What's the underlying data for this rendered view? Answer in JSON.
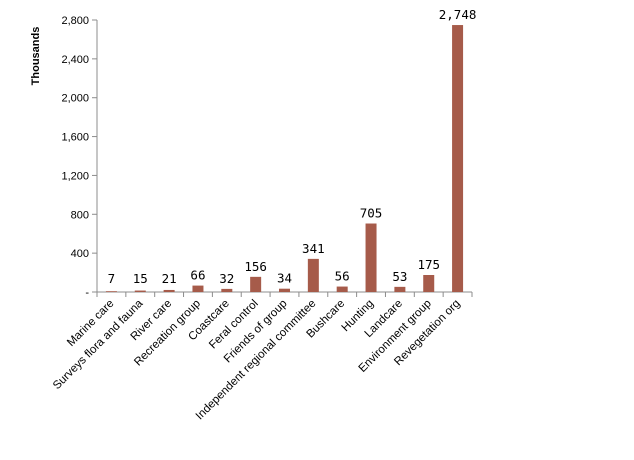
{
  "chart_data": {
    "type": "bar",
    "title": "",
    "xlabel": "",
    "ylabel": "Thousands",
    "ylim": [
      0,
      2800
    ],
    "yticks": [
      0,
      400,
      800,
      1200,
      1600,
      2000,
      2400,
      2800
    ],
    "ytick_labels": [
      "-",
      "400",
      "800",
      "1,200",
      "1,600",
      "2,000",
      "2,400",
      "2,800"
    ],
    "grid": false,
    "legend": "none",
    "bar_color": "#a65b4a",
    "categories": [
      "Marine care",
      "Surveys flora and fauna",
      "River care",
      "Recreation group",
      "Coastcare",
      "Feral control",
      "Friends of group",
      "Independent regional committee",
      "Bushcare",
      "Hunting",
      "Landcare",
      "Environment group",
      "Revegetation org"
    ],
    "values": [
      7,
      15,
      21,
      66,
      32,
      156,
      34,
      341,
      56,
      705,
      53,
      175,
      2748
    ],
    "value_labels": [
      "7",
      "15",
      "21",
      "66",
      "32",
      "156",
      "34",
      "341",
      "56",
      "705",
      "53",
      "175",
      "2,748"
    ]
  }
}
